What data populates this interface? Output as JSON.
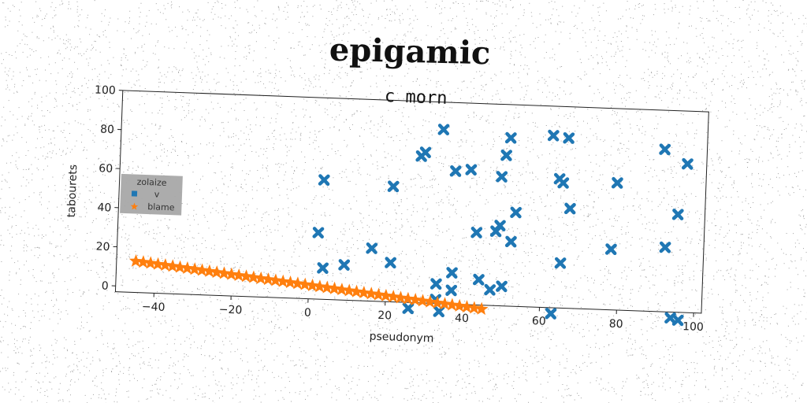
{
  "chart_data": {
    "type": "scatter",
    "title": "epigamic",
    "subtitle": "c morn",
    "xlabel": "pseudonym",
    "ylabel": "tabourets",
    "xlim": [
      -50,
      102
    ],
    "ylim": [
      -3,
      100
    ],
    "xticks": [
      -40,
      -20,
      0,
      20,
      40,
      60,
      80,
      100
    ],
    "yticks": [
      0,
      20,
      40,
      60,
      80,
      100
    ],
    "xtick_labels": [
      "−40",
      "−20",
      "0",
      "20",
      "40",
      "60",
      "80",
      "100"
    ],
    "ytick_labels": [
      "0",
      "20",
      "40",
      "60",
      "80",
      "100"
    ],
    "grid": false,
    "legend": {
      "title": "zolaize",
      "placement": "center-left"
    },
    "series": [
      {
        "name": "v",
        "color": "#1f77b4",
        "marker": "x-filled",
        "points": [
          [
            2,
            31
          ],
          [
            3,
            58
          ],
          [
            3.5,
            13
          ],
          [
            9,
            15
          ],
          [
            16,
            24
          ],
          [
            21,
            56
          ],
          [
            21,
            17
          ],
          [
            26,
            -6
          ],
          [
            28,
            72
          ],
          [
            29,
            74
          ],
          [
            33,
            7
          ],
          [
            33.5,
            86
          ],
          [
            33,
            -1
          ],
          [
            34,
            -7
          ],
          [
            37,
            65
          ],
          [
            37,
            13
          ],
          [
            37,
            4
          ],
          [
            41,
            66
          ],
          [
            43,
            34
          ],
          [
            44,
            10
          ],
          [
            47,
            5
          ],
          [
            48,
            35
          ],
          [
            49,
            63
          ],
          [
            49,
            38
          ],
          [
            50,
            74
          ],
          [
            50,
            7
          ],
          [
            51,
            83
          ],
          [
            52,
            30
          ],
          [
            53,
            45
          ],
          [
            62,
            85
          ],
          [
            63,
            -6
          ],
          [
            64,
            63
          ],
          [
            65,
            61
          ],
          [
            65,
            20
          ],
          [
            66,
            84
          ],
          [
            67,
            48
          ],
          [
            78,
            28
          ],
          [
            79,
            62
          ],
          [
            91,
            80
          ],
          [
            92,
            30
          ],
          [
            94,
            -6
          ],
          [
            95,
            47
          ],
          [
            96,
            -7
          ],
          [
            97,
            73
          ]
        ]
      },
      {
        "name": "blame",
        "color": "#ff7f0e",
        "marker": "star",
        "x_start": -45,
        "x_end": 45,
        "count": 48,
        "y_start": 13,
        "y_end": -5
      }
    ]
  }
}
